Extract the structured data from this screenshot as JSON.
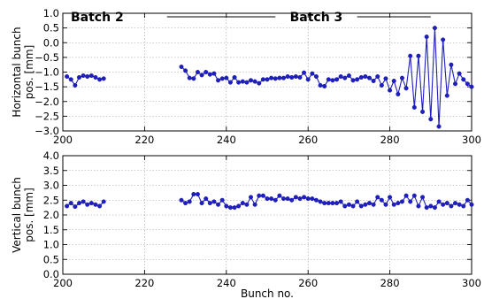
{
  "chart_data": [
    {
      "type": "line",
      "id": "horizontal",
      "xlabel": "",
      "ylabel": "Horizontal bunch pos. [mm]",
      "ylabel_lines": [
        "Horizontal bunch",
        "pos. [mm]"
      ],
      "xlim": [
        200,
        300
      ],
      "ylim": [
        -3.0,
        1.0
      ],
      "xticks": [
        200,
        220,
        240,
        260,
        280,
        300
      ],
      "xtick_labels": [
        "200",
        "220",
        "240",
        "260",
        "280",
        "300"
      ],
      "yticks": [
        -3.0,
        -2.5,
        -2.0,
        -1.5,
        -1.0,
        -0.5,
        0.0,
        0.5,
        1.0
      ],
      "ytick_labels": [
        "−3.0",
        "−2.5",
        "−2.0",
        "−1.5",
        "−1.0",
        "−0.5",
        "0.0",
        "0.5",
        "1.0"
      ],
      "grid": true,
      "annotations": [
        {
          "text": "Batch 2"
        },
        {
          "text": "Batch 3"
        }
      ],
      "series": [
        {
          "color": "#1f1fbf",
          "segments": [
            {
              "x": [
                201,
                202,
                203,
                204,
                205,
                206,
                207,
                208,
                209,
                210
              ],
              "y": [
                -1.15,
                -1.25,
                -1.45,
                -1.18,
                -1.12,
                -1.15,
                -1.12,
                -1.18,
                -1.25,
                -1.22
              ]
            },
            {
              "x": [
                229,
                230,
                231,
                232,
                233,
                234,
                235,
                236,
                237,
                238,
                239,
                240,
                241,
                242,
                243,
                244,
                245,
                246,
                247,
                248,
                249,
                250,
                251,
                252,
                253,
                254,
                255,
                256,
                257,
                258,
                259,
                260,
                261,
                262,
                263,
                264,
                265,
                266,
                267,
                268,
                269,
                270,
                271,
                272,
                273,
                274,
                275,
                276,
                277,
                278,
                279,
                280,
                281,
                282,
                283,
                284,
                285,
                286,
                287,
                288,
                289,
                290,
                291,
                292,
                293,
                294,
                295,
                296,
                297,
                298,
                299,
                300
              ],
              "y": [
                -0.82,
                -0.95,
                -1.2,
                -1.22,
                -1.0,
                -1.1,
                -1.0,
                -1.08,
                -1.05,
                -1.28,
                -1.22,
                -1.2,
                -1.35,
                -1.18,
                -1.35,
                -1.32,
                -1.35,
                -1.28,
                -1.32,
                -1.38,
                -1.25,
                -1.25,
                -1.2,
                -1.22,
                -1.2,
                -1.2,
                -1.15,
                -1.18,
                -1.15,
                -1.18,
                -1.02,
                -1.25,
                -1.05,
                -1.15,
                -1.45,
                -1.48,
                -1.25,
                -1.28,
                -1.25,
                -1.15,
                -1.2,
                -1.12,
                -1.28,
                -1.25,
                -1.18,
                -1.15,
                -1.2,
                -1.3,
                -1.15,
                -1.45,
                -1.22,
                -1.62,
                -1.3,
                -1.75,
                -1.2,
                -1.55,
                -0.45,
                -2.2,
                -0.45,
                -2.35,
                0.2,
                -2.6,
                0.5,
                -2.85,
                0.1,
                -1.8,
                -0.75,
                -1.4,
                -1.05,
                -1.25,
                -1.4,
                -1.5
              ]
            }
          ]
        }
      ]
    },
    {
      "type": "line",
      "id": "vertical",
      "xlabel": "Bunch no.",
      "ylabel": "Vertical bunch pos. [mm]",
      "ylabel_lines": [
        "Vertical bunch",
        "pos. [mm]"
      ],
      "xlim": [
        200,
        300
      ],
      "ylim": [
        0.0,
        4.0
      ],
      "xticks": [
        200,
        220,
        240,
        260,
        280,
        300
      ],
      "xtick_labels": [
        "200",
        "220",
        "240",
        "260",
        "280",
        "300"
      ],
      "yticks": [
        0.0,
        0.5,
        1.0,
        1.5,
        2.0,
        2.5,
        3.0,
        3.5,
        4.0
      ],
      "ytick_labels": [
        "0.0",
        "0.5",
        "1.0",
        "1.5",
        "2.0",
        "2.5",
        "3.0",
        "3.5",
        "4.0"
      ],
      "grid": true,
      "series": [
        {
          "color": "#1f1fbf",
          "segments": [
            {
              "x": [
                201,
                202,
                203,
                204,
                205,
                206,
                207,
                208,
                209,
                210
              ],
              "y": [
                2.3,
                2.4,
                2.28,
                2.4,
                2.45,
                2.35,
                2.4,
                2.35,
                2.3,
                2.45
              ]
            },
            {
              "x": [
                229,
                230,
                231,
                232,
                233,
                234,
                235,
                236,
                237,
                238,
                239,
                240,
                241,
                242,
                243,
                244,
                245,
                246,
                247,
                248,
                249,
                250,
                251,
                252,
                253,
                254,
                255,
                256,
                257,
                258,
                259,
                260,
                261,
                262,
                263,
                264,
                265,
                266,
                267,
                268,
                269,
                270,
                271,
                272,
                273,
                274,
                275,
                276,
                277,
                278,
                279,
                280,
                281,
                282,
                283,
                284,
                285,
                286,
                287,
                288,
                289,
                290,
                291,
                292,
                293,
                294,
                295,
                296,
                297,
                298,
                299,
                300
              ],
              "y": [
                2.5,
                2.4,
                2.45,
                2.7,
                2.7,
                2.4,
                2.55,
                2.4,
                2.45,
                2.35,
                2.5,
                2.3,
                2.25,
                2.25,
                2.3,
                2.4,
                2.35,
                2.6,
                2.35,
                2.65,
                2.65,
                2.55,
                2.55,
                2.5,
                2.65,
                2.55,
                2.55,
                2.5,
                2.6,
                2.55,
                2.6,
                2.55,
                2.55,
                2.5,
                2.45,
                2.4,
                2.4,
                2.4,
                2.4,
                2.45,
                2.3,
                2.35,
                2.3,
                2.45,
                2.3,
                2.35,
                2.4,
                2.35,
                2.6,
                2.5,
                2.35,
                2.6,
                2.35,
                2.4,
                2.45,
                2.65,
                2.45,
                2.65,
                2.3,
                2.6,
                2.25,
                2.3,
                2.25,
                2.45,
                2.35,
                2.4,
                2.3,
                2.4,
                2.35,
                2.3,
                2.5,
                2.35
              ]
            }
          ]
        }
      ]
    }
  ]
}
